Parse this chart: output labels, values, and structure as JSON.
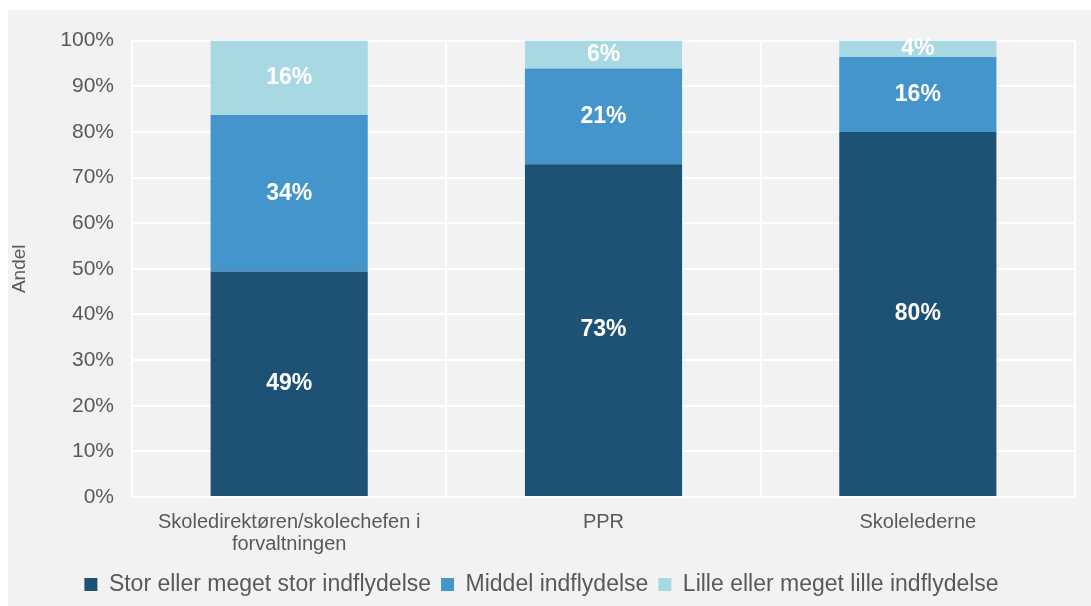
{
  "chart_data": {
    "type": "bar",
    "stacked": true,
    "ylabel": "Andel",
    "categories": [
      "Skoledirektøren/skolechefen i forvaltningen",
      "PPR",
      "Skolelederne"
    ],
    "series": [
      {
        "name": "Stor eller meget stor indflydelse",
        "color": "#1e5275",
        "values": [
          49.4,
          72.9,
          80.0
        ],
        "value_labels": [
          "49%",
          "73%",
          "80%"
        ]
      },
      {
        "name": "Middel indflydelse",
        "color": "#4395cb",
        "values": [
          34.3,
          21.0,
          16.4
        ],
        "value_labels": [
          "34%",
          "21%",
          "16%"
        ]
      },
      {
        "name": "Lille eller meget lille indflydelse",
        "color": "#a8d9e3",
        "values": [
          16.3,
          6.1,
          3.6
        ],
        "value_labels": [
          "16%",
          "6%",
          "4%"
        ]
      }
    ],
    "ylim": [
      0,
      100
    ],
    "yticks": [
      {
        "value": 0,
        "label": "0%"
      },
      {
        "value": 10,
        "label": "10%"
      },
      {
        "value": 20,
        "label": "20%"
      },
      {
        "value": 30,
        "label": "30%"
      },
      {
        "value": 40,
        "label": "40%"
      },
      {
        "value": 50,
        "label": "50%"
      },
      {
        "value": 60,
        "label": "60%"
      },
      {
        "value": 70,
        "label": "70%"
      },
      {
        "value": 80,
        "label": "80%"
      },
      {
        "value": 90,
        "label": "90%"
      },
      {
        "value": 100,
        "label": "100%"
      }
    ],
    "grid": true,
    "legend": "bottom"
  }
}
